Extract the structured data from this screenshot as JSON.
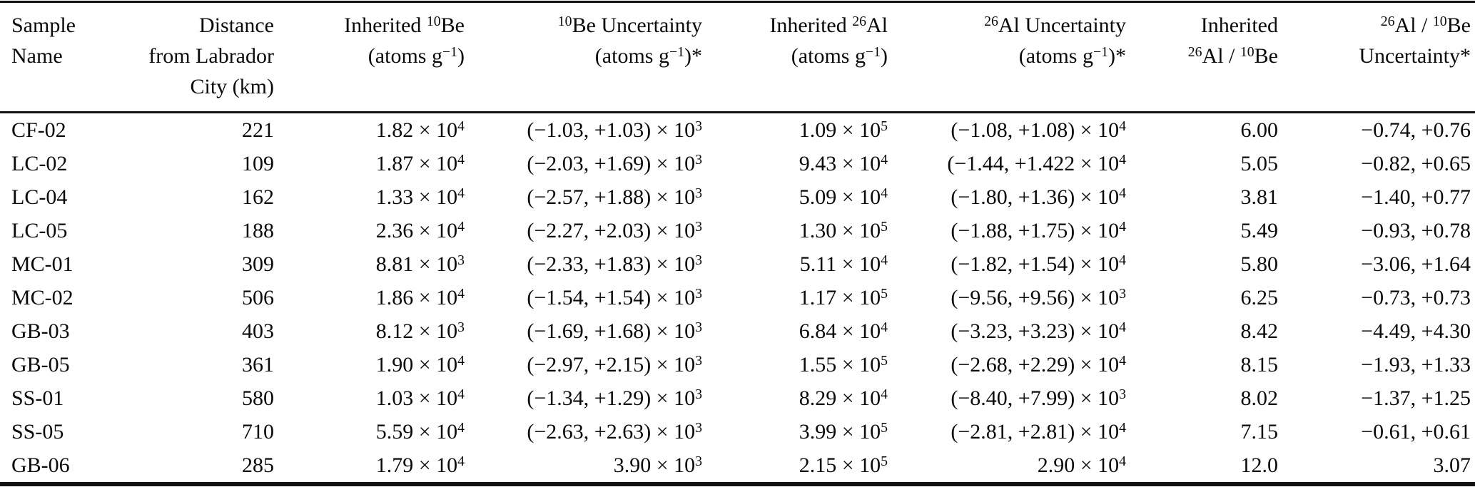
{
  "page": {
    "background_color": "#ffffff",
    "text_color": "#0a0a0a",
    "rule_color": "#111111"
  },
  "table": {
    "columns": [
      {
        "id": "sample-name",
        "align": "left",
        "header_lines": [
          "Sample",
          "Name"
        ]
      },
      {
        "id": "distance",
        "align": "right",
        "header_lines": [
          "Distance",
          "from Labrador",
          "City (km)"
        ]
      },
      {
        "id": "inherited-be10",
        "align": "right",
        "header_lines": [
          "Inherited ^{10}Be",
          "(atoms g^{−1})"
        ]
      },
      {
        "id": "be10-uncertainty",
        "align": "right",
        "header_lines": [
          "^{10}Be Uncertainty",
          "(atoms g^{−1})*"
        ]
      },
      {
        "id": "inherited-al26",
        "align": "right",
        "header_lines": [
          "Inherited ^{26}Al",
          "(atoms g^{−1})"
        ]
      },
      {
        "id": "al26-uncertainty",
        "align": "right",
        "header_lines": [
          "^{26}Al Uncertainty",
          "(atoms g^{−1})*"
        ]
      },
      {
        "id": "inherited-ratio",
        "align": "right",
        "header_lines": [
          "Inherited",
          "^{26}Al / ^{10}Be"
        ]
      },
      {
        "id": "ratio-uncertainty",
        "align": "right",
        "header_lines": [
          "^{26}Al / ^{10}Be",
          "Uncertainty*"
        ]
      }
    ],
    "rows": [
      [
        "CF-02",
        "221",
        "1.82 × 10^{4}",
        "(−1.03, +1.03) × 10^{3}",
        "1.09 × 10^{5}",
        "(−1.08, +1.08) × 10^{4}",
        "6.00",
        "−0.74, +0.76"
      ],
      [
        "LC-02",
        "109",
        "1.87 × 10^{4}",
        "(−2.03, +1.69) × 10^{3}",
        "9.43 × 10^{4}",
        "(−1.44, +1.422 × 10^{4}",
        "5.05",
        "−0.82, +0.65"
      ],
      [
        "LC-04",
        "162",
        "1.33 × 10^{4}",
        "(−2.57, +1.88) × 10^{3}",
        "5.09 × 10^{4}",
        "(−1.80, +1.36) × 10^{4}",
        "3.81",
        "−1.40, +0.77"
      ],
      [
        "LC-05",
        "188",
        "2.36 × 10^{4}",
        "(−2.27, +2.03) × 10^{3}",
        "1.30 × 10^{5}",
        "(−1.88, +1.75) × 10^{4}",
        "5.49",
        "−0.93, +0.78"
      ],
      [
        "MC-01",
        "309",
        "8.81 × 10^{3}",
        "(−2.33, +1.83) × 10^{3}",
        "5.11 × 10^{4}",
        "(−1.82, +1.54) × 10^{4}",
        "5.80",
        "−3.06, +1.64"
      ],
      [
        "MC-02",
        "506",
        "1.86 × 10^{4}",
        "(−1.54, +1.54) × 10^{3}",
        "1.17 × 10^{5}",
        "(−9.56, +9.56) × 10^{3}",
        "6.25",
        "−0.73, +0.73"
      ],
      [
        "GB-03",
        "403",
        "8.12 × 10^{3}",
        "(−1.69, +1.68) × 10^{3}",
        "6.84 × 10^{4}",
        "(−3.23, +3.23) × 10^{4}",
        "8.42",
        "−4.49, +4.30"
      ],
      [
        "GB-05",
        "361",
        "1.90 × 10^{4}",
        "(−2.97, +2.15) × 10^{3}",
        "1.55 × 10^{5}",
        "(−2.68, +2.29) × 10^{4}",
        "8.15",
        "−1.93, +1.33"
      ],
      [
        "SS-01",
        "580",
        "1.03 × 10^{4}",
        "(−1.34, +1.29) × 10^{3}",
        "8.29 × 10^{4}",
        "(−8.40, +7.99) × 10^{3}",
        "8.02",
        "−1.37, +1.25"
      ],
      [
        "SS-05",
        "710",
        "5.59 × 10^{4}",
        "(−2.63, +2.63) × 10^{3}",
        "3.99 × 10^{5}",
        "(−2.81, +2.81) × 10^{4}",
        "7.15",
        "−0.61, +0.61"
      ],
      [
        "GB-06",
        "285",
        "1.79 × 10^{4}",
        "3.90 × 10^{3}",
        "2.15 × 10^{5}",
        "2.90 × 10^{4}",
        "12.0",
        "3.07"
      ]
    ]
  }
}
